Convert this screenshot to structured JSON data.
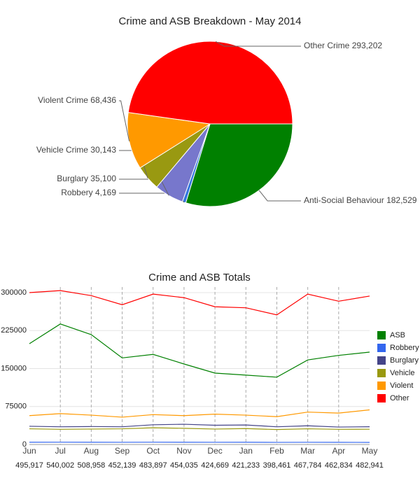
{
  "chart_data": [
    {
      "type": "pie",
      "title": "Crime and ASB Breakdown - May 2014",
      "labels": [
        "Anti-Social Behaviour",
        "Robbery",
        "Burglary",
        "Vehicle Crime",
        "Violent Crime",
        "Other Crime"
      ],
      "values": [
        182529,
        4169,
        35100,
        30143,
        68436,
        293202
      ],
      "value_labels": [
        "182,529",
        "4,169",
        "35,100",
        "30,143",
        "68,436",
        "293,202"
      ],
      "colors": [
        "#008000",
        "#3377dd",
        "#7777cc",
        "#999911",
        "#ff9900",
        "#ff0000"
      ]
    },
    {
      "type": "line",
      "title": "Crime and ASB Totals",
      "categories": [
        "Jun",
        "Jul",
        "Aug",
        "Sep",
        "Oct",
        "Nov",
        "Dec",
        "Jan",
        "Feb",
        "Mar",
        "Apr",
        "May"
      ],
      "totals": {
        "values": [
          495917,
          540002,
          508958,
          452139,
          483897,
          454035,
          424669,
          421233,
          398461,
          467784,
          462834,
          482941
        ],
        "value_labels": [
          "495,917",
          "540,002",
          "508,958",
          "452,139",
          "483,897",
          "454,035",
          "424,669",
          "421,233",
          "398,461",
          "467,784",
          "462,834",
          "482,941"
        ]
      },
      "ylim": [
        0,
        300000
      ],
      "yticks": [
        0,
        75000,
        150000,
        225000,
        300000
      ],
      "grid": true,
      "legend": "right",
      "series": [
        {
          "name": "ASB",
          "color": "#008000",
          "values": [
            199000,
            238000,
            217000,
            171000,
            178000,
            159000,
            141000,
            137000,
            133000,
            167000,
            176000,
            182529
          ]
        },
        {
          "name": "Robbery",
          "color": "#3366ee",
          "values": [
            4500,
            4600,
            4500,
            4400,
            4600,
            4500,
            4400,
            4500,
            4200,
            4400,
            4300,
            4169
          ]
        },
        {
          "name": "Burglary",
          "color": "#444488",
          "values": [
            36000,
            35000,
            35500,
            35000,
            39000,
            40000,
            38000,
            38500,
            35000,
            37000,
            34500,
            35100
          ]
        },
        {
          "name": "Vehicle",
          "color": "#999910",
          "values": [
            31000,
            30000,
            30500,
            31000,
            33000,
            32000,
            30500,
            31500,
            29500,
            31000,
            30000,
            30143
          ]
        },
        {
          "name": "Violent",
          "color": "#ff9900",
          "values": [
            57000,
            61000,
            58000,
            54000,
            59000,
            57000,
            60000,
            58000,
            55000,
            64000,
            62000,
            68436
          ]
        },
        {
          "name": "Other",
          "color": "#ff0000",
          "values": [
            300000,
            304000,
            294000,
            276000,
            297000,
            290000,
            272000,
            270000,
            256000,
            297000,
            283000,
            293202
          ]
        }
      ]
    }
  ]
}
